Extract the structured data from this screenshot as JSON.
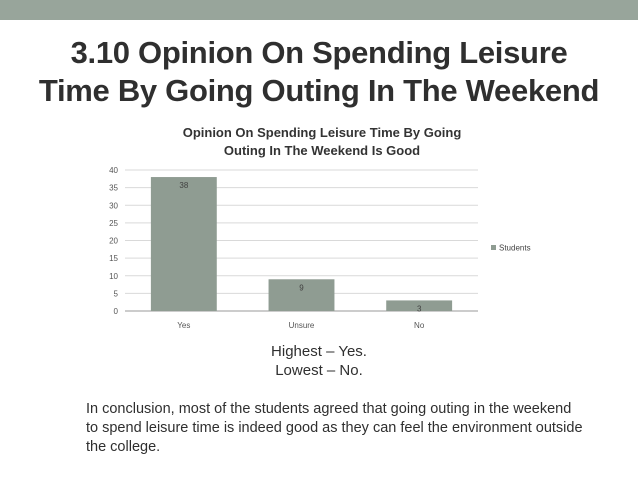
{
  "slide": {
    "title_line1": "3.10 Opinion On Spending Leisure",
    "title_line2": "Time By Going Outing In The Weekend"
  },
  "summary": {
    "line1": "Highest – Yes.",
    "line2": "Lowest – No."
  },
  "conclusion": "In conclusion, most of the students agreed that going outing in the weekend to spend leisure time is indeed good as they can feel the environment outside the college.",
  "chart_data": {
    "type": "bar",
    "title": "Opinion On Spending Leisure Time By Going Outing In The Weekend Is Good",
    "title_lines": [
      "Opinion On Spending Leisure Time By Going",
      "Outing In The Weekend Is Good"
    ],
    "categories": [
      "Yes",
      "Unsure",
      "No"
    ],
    "series": [
      {
        "name": "Students",
        "values": [
          38,
          9,
          3
        ],
        "color": "#8f9c92"
      }
    ],
    "xlabel": "",
    "ylabel": "",
    "ylim": [
      0,
      40
    ],
    "yticks": [
      0,
      5,
      10,
      15,
      20,
      25,
      30,
      35,
      40
    ],
    "grid": true,
    "legend": "right",
    "data_labels": true
  }
}
